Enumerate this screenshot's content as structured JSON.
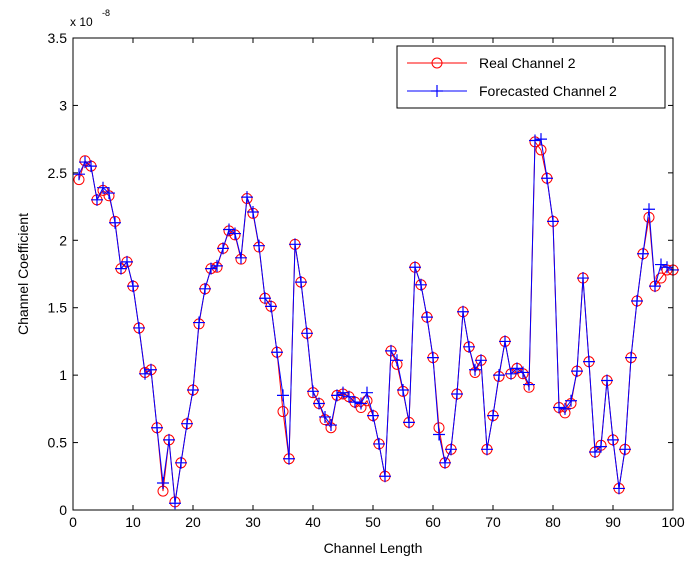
{
  "chart_data": {
    "type": "line",
    "xlabel": "Channel Length",
    "ylabel": "Channel Coefficient",
    "scale_label": {
      "base": "x 10",
      "exponent": "-8"
    },
    "xlim": [
      0,
      100
    ],
    "ylim": [
      0,
      3.5
    ],
    "grid": false,
    "legend_position": "top-right",
    "x_ticks": [
      "0",
      "10",
      "20",
      "30",
      "40",
      "50",
      "60",
      "70",
      "80",
      "90",
      "100"
    ],
    "y_ticks": [
      "0",
      "0.5",
      "1",
      "1.5",
      "2",
      "2.5",
      "3",
      "3.5"
    ],
    "x": [
      1,
      2,
      3,
      4,
      5,
      6,
      7,
      8,
      9,
      10,
      11,
      12,
      13,
      14,
      15,
      16,
      17,
      18,
      19,
      20,
      21,
      22,
      23,
      24,
      25,
      26,
      27,
      28,
      29,
      30,
      31,
      32,
      33,
      34,
      35,
      36,
      37,
      38,
      39,
      40,
      41,
      42,
      43,
      44,
      45,
      46,
      47,
      48,
      49,
      50,
      51,
      52,
      53,
      54,
      55,
      56,
      57,
      58,
      59,
      60,
      61,
      62,
      63,
      64,
      65,
      66,
      67,
      68,
      69,
      70,
      71,
      72,
      73,
      74,
      75,
      76,
      77,
      78,
      79,
      80,
      81,
      82,
      83,
      84,
      85,
      86,
      87,
      88,
      89,
      90,
      91,
      92,
      93,
      94,
      95,
      96,
      97,
      98,
      99,
      100
    ],
    "series": [
      {
        "name": "Real Channel 2",
        "color": "#ff0000",
        "marker": "circle",
        "values": [
          2.45,
          2.59,
          2.55,
          2.3,
          2.37,
          2.33,
          2.14,
          1.79,
          1.84,
          1.66,
          1.35,
          1.02,
          1.04,
          0.61,
          0.14,
          0.52,
          0.06,
          0.35,
          0.64,
          0.89,
          1.38,
          1.64,
          1.79,
          1.8,
          1.94,
          2.07,
          2.04,
          1.86,
          2.31,
          2.2,
          1.95,
          1.57,
          1.51,
          1.17,
          0.73,
          0.38,
          1.97,
          1.69,
          1.31,
          0.87,
          0.79,
          0.67,
          0.61,
          0.85,
          0.86,
          0.84,
          0.8,
          0.76,
          0.81,
          0.7,
          0.49,
          0.25,
          1.18,
          1.08,
          0.88,
          0.65,
          1.8,
          1.67,
          1.43,
          1.13,
          0.61,
          0.35,
          0.45,
          0.86,
          1.47,
          1.21,
          1.02,
          1.11,
          0.45,
          0.7,
          0.99,
          1.25,
          1.01,
          1.05,
          1.01,
          0.91,
          2.73,
          2.67,
          2.46,
          2.14,
          0.76,
          0.72,
          0.79,
          1.03,
          1.72,
          1.1,
          0.43,
          0.48,
          0.96,
          0.52,
          0.16,
          0.45,
          1.13,
          1.55,
          1.9,
          2.17,
          1.66,
          1.72,
          1.78,
          1.78
        ]
      },
      {
        "name": "Forecasted Channel 2",
        "color": "#0000ff",
        "marker": "plus",
        "values": [
          2.49,
          2.58,
          2.55,
          2.3,
          2.39,
          2.35,
          2.13,
          1.79,
          1.84,
          1.66,
          1.35,
          1.01,
          1.04,
          0.61,
          0.2,
          0.52,
          0.05,
          0.35,
          0.64,
          0.89,
          1.39,
          1.64,
          1.79,
          1.81,
          1.94,
          2.08,
          2.05,
          1.87,
          2.32,
          2.21,
          1.96,
          1.57,
          1.51,
          1.17,
          0.85,
          0.38,
          1.97,
          1.69,
          1.31,
          0.88,
          0.79,
          0.69,
          0.63,
          0.85,
          0.87,
          0.84,
          0.8,
          0.79,
          0.87,
          0.7,
          0.49,
          0.25,
          1.18,
          1.11,
          0.89,
          0.65,
          1.8,
          1.67,
          1.43,
          1.13,
          0.56,
          0.35,
          0.45,
          0.86,
          1.47,
          1.21,
          1.04,
          1.11,
          0.45,
          0.7,
          1.0,
          1.25,
          1.01,
          1.05,
          1.02,
          0.93,
          2.74,
          2.75,
          2.46,
          2.14,
          0.76,
          0.75,
          0.81,
          1.03,
          1.72,
          1.1,
          0.43,
          0.47,
          0.96,
          0.52,
          0.16,
          0.45,
          1.13,
          1.55,
          1.9,
          2.23,
          1.66,
          1.82,
          1.8,
          1.78
        ]
      }
    ]
  }
}
